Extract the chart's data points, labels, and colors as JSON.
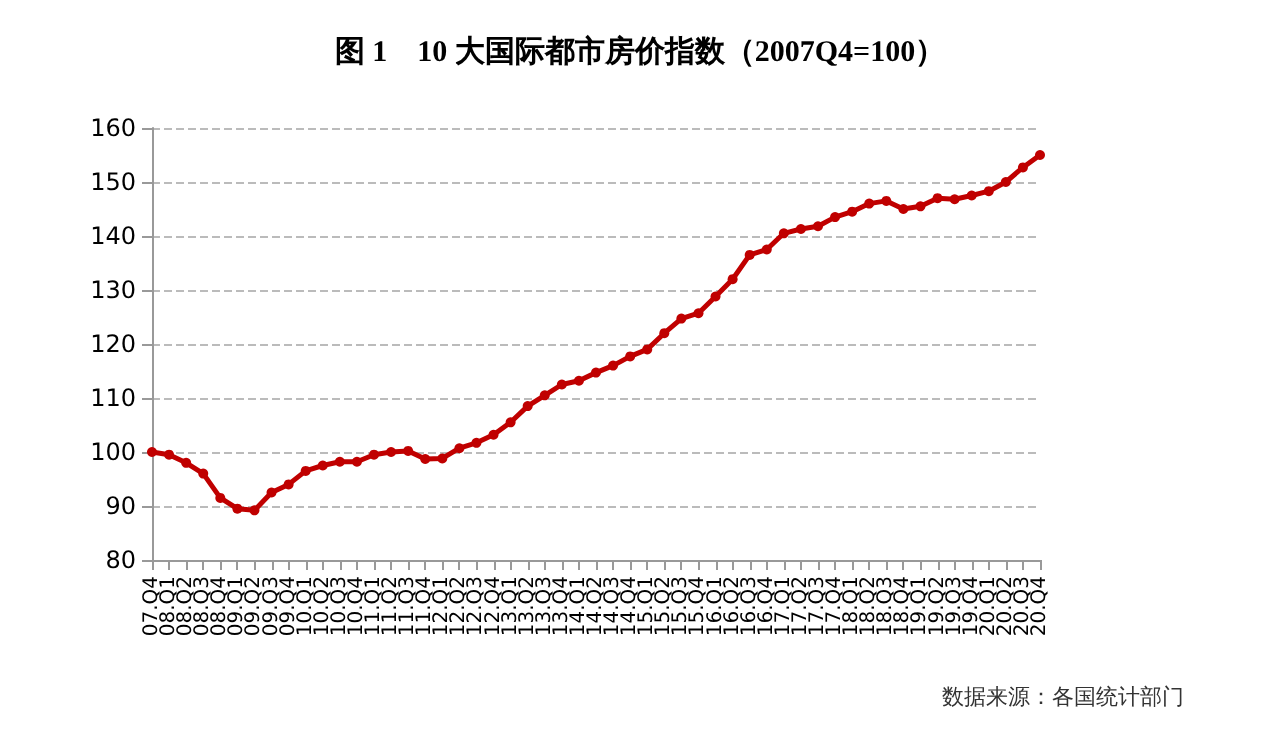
{
  "chart_data": {
    "type": "line",
    "title": "图 1    10 大国际都市房价指数（2007Q4=100）",
    "categories": [
      "07.Q4",
      "08.Q1",
      "08.Q2",
      "08.Q3",
      "08.Q4",
      "09.Q1",
      "09.Q2",
      "09.Q3",
      "09.Q4",
      "10.Q1",
      "10.Q2",
      "10.Q3",
      "10.Q4",
      "11.Q1",
      "11.Q2",
      "11.Q3",
      "11.Q4",
      "12.Q1",
      "12.Q2",
      "12.Q3",
      "12.Q4",
      "13.Q1",
      "13.Q2",
      "13.Q3",
      "13.Q4",
      "14.Q1",
      "14.Q2",
      "14.Q3",
      "14.Q4",
      "15.Q1",
      "15.Q2",
      "15.Q3",
      "15.Q4",
      "16.Q1",
      "16.Q2",
      "16.Q3",
      "16.Q4",
      "17.Q1",
      "17.Q2",
      "17.Q3",
      "17.Q4",
      "18.Q1",
      "18.Q2",
      "18.Q3",
      "18.Q4",
      "19.Q1",
      "19.Q2",
      "19.Q3",
      "19.Q4",
      "20.Q1",
      "20.Q2",
      "20.Q3",
      "20.Q4"
    ],
    "series": [
      {
        "color": "#c00000",
        "values": [
          100,
          99.5,
          98,
          96,
          91.5,
          89.5,
          89.2,
          92.5,
          94,
          96.5,
          97.5,
          98.2,
          98.2,
          99.5,
          100,
          100.2,
          98.7,
          98.8,
          100.7,
          101.7,
          103.2,
          105.5,
          108.5,
          110.5,
          112.5,
          113.2,
          114.7,
          116,
          117.7,
          119,
          122,
          124.7,
          125.7,
          128.8,
          132,
          136.5,
          137.5,
          140.5,
          141.3,
          141.8,
          143.5,
          144.5,
          146,
          146.5,
          145,
          145.5,
          147,
          146.8,
          147.5,
          148.3,
          150,
          152.7,
          155
        ]
      }
    ],
    "ylim": [
      80,
      160
    ],
    "yticks": [
      80,
      90,
      100,
      110,
      120,
      130,
      140,
      150,
      160
    ],
    "grid": "y",
    "marker": "circle",
    "line_style": "solid",
    "annotations": [
      "数据来源：各国统计部门"
    ]
  }
}
